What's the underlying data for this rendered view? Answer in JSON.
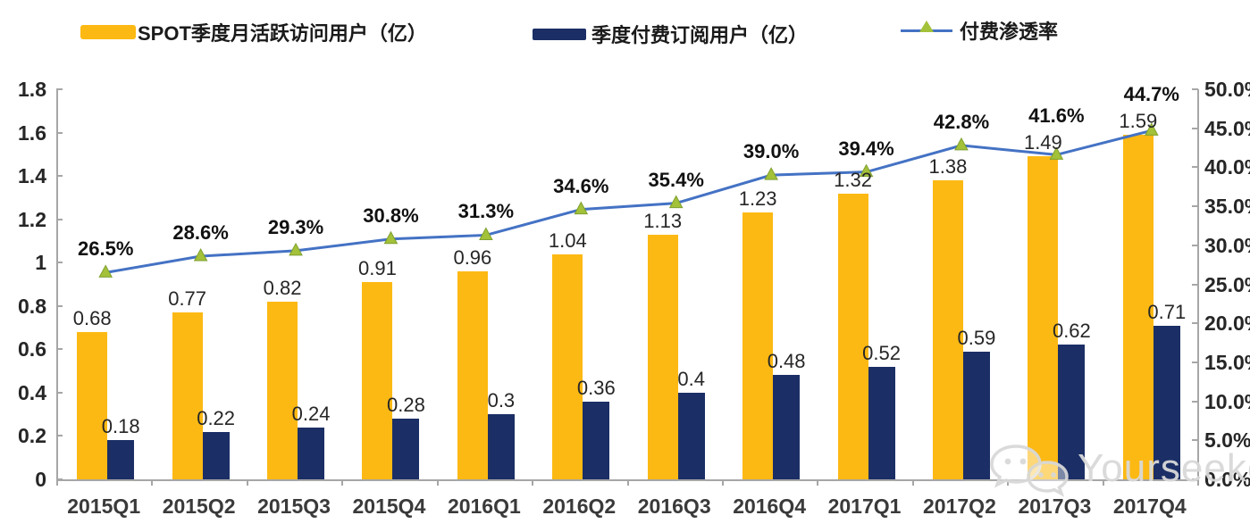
{
  "legend": [
    {
      "label": "SPOT季度月活跃访问用户（亿）",
      "color": "#FDB913",
      "type": "bar"
    },
    {
      "label": "季度付费订阅用户（亿）",
      "color": "#1B2F66",
      "type": "bar"
    },
    {
      "label": "付费渗透率",
      "color": "#4472C4",
      "marker_color": "#A3C139",
      "type": "line"
    }
  ],
  "watermark": {
    "text": "Yourseeker",
    "icon": "wechat-icon"
  },
  "chart_data": {
    "type": "bar+line",
    "categories": [
      "2015Q1",
      "2015Q2",
      "2015Q3",
      "2015Q4",
      "2016Q1",
      "2016Q2",
      "2016Q3",
      "2016Q4",
      "2017Q1",
      "2017Q2",
      "2017Q3",
      "2017Q4"
    ],
    "series": [
      {
        "name": "SPOT季度月活跃访问用户（亿）",
        "type": "bar",
        "axis": "left",
        "color": "#FDB913",
        "values": [
          0.68,
          0.77,
          0.82,
          0.91,
          0.96,
          1.04,
          1.13,
          1.23,
          1.32,
          1.38,
          1.49,
          1.59
        ],
        "labels": [
          "0.68",
          "0.77",
          "0.82",
          "0.91",
          "0.96",
          "1.04",
          "1.13",
          "1.23",
          "1.32",
          "1.38",
          "1.49",
          "1.59"
        ]
      },
      {
        "name": "季度付费订阅用户（亿）",
        "type": "bar",
        "axis": "left",
        "color": "#1B2F66",
        "values": [
          0.18,
          0.22,
          0.24,
          0.28,
          0.3,
          0.36,
          0.4,
          0.48,
          0.52,
          0.59,
          0.62,
          0.71
        ],
        "labels": [
          "0.18",
          "0.22",
          "0.24",
          "0.28",
          "0.3",
          "0.36",
          "0.4",
          "0.48",
          "0.52",
          "0.59",
          "0.62",
          "0.71"
        ]
      },
      {
        "name": "付费渗透率",
        "type": "line",
        "axis": "right",
        "color": "#4472C4",
        "marker_color": "#A3C139",
        "values": [
          26.5,
          28.6,
          29.3,
          30.8,
          31.3,
          34.6,
          35.4,
          39.0,
          39.4,
          42.8,
          41.6,
          44.7
        ],
        "labels": [
          "26.5%",
          "28.6%",
          "29.3%",
          "30.8%",
          "31.3%",
          "34.6%",
          "35.4%",
          "39.0%",
          "39.4%",
          "42.8%",
          "41.6%",
          "44.7%"
        ]
      }
    ],
    "left_axis": {
      "min": 0,
      "max": 1.8,
      "ticks": [
        "1.8",
        "1.6",
        "1.4",
        "1.2",
        "1",
        "0.8",
        "0.6",
        "0.4",
        "0.2",
        "0"
      ]
    },
    "right_axis": {
      "min": 0,
      "max": 50,
      "ticks": [
        "50.0%",
        "45.0%",
        "40.0%",
        "35.0%",
        "30.0%",
        "25.0%",
        "20.0%",
        "15.0%",
        "10.0%",
        "5.0%",
        "0.0%"
      ]
    },
    "grid": false,
    "legend_position": "top"
  }
}
